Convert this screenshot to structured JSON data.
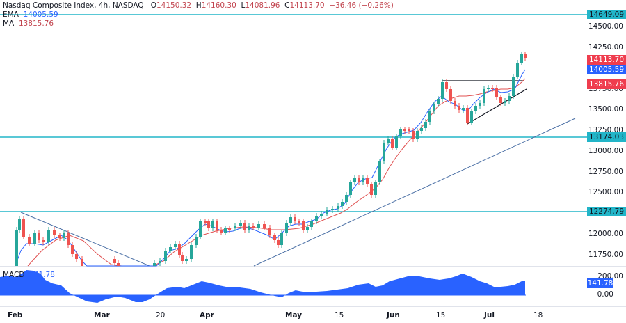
{
  "header": {
    "symbol_title": "Nasdaq Composite Index, 4h, NASDAQ",
    "open_label": "O",
    "open": "14150.32",
    "high_label": "H",
    "high": "14160.30",
    "low_label": "L",
    "low": "14081.96",
    "close_label": "C",
    "close": "14113.70",
    "change": "−36.46 (−0.26%)"
  },
  "indicators": {
    "ema_label": "EMA",
    "ema_value": "14005.59",
    "ma_label": "MA",
    "ma_value": "13815.76",
    "macd_label": "MACD",
    "macd_value": "141.78"
  },
  "price_axis": {
    "ticks": [
      "14500.00",
      "14250.00",
      "13750.00",
      "13500.00",
      "13250.00",
      "13000.00",
      "12750.00",
      "12500.00",
      "12000.00",
      "11750.00"
    ]
  },
  "price_tags": {
    "resistance_top": "14649.09",
    "last_price": "14113.70",
    "ema": "14005.59",
    "ma": "13815.76",
    "support_mid": "13174.03",
    "support_low": "12274.79"
  },
  "macd_axis": {
    "ticks": [
      "200.00",
      "0.00"
    ],
    "current": "141.78"
  },
  "time_axis": {
    "labels": [
      {
        "text": "Feb",
        "bold": true
      },
      {
        "text": "Mar",
        "bold": true
      },
      {
        "text": "20",
        "bold": false
      },
      {
        "text": "Apr",
        "bold": true
      },
      {
        "text": "May",
        "bold": true
      },
      {
        "text": "15",
        "bold": false
      },
      {
        "text": "Jun",
        "bold": true
      },
      {
        "text": "15",
        "bold": false
      },
      {
        "text": "Jul",
        "bold": true
      },
      {
        "text": "18",
        "bold": false
      }
    ]
  },
  "colors": {
    "up": "#26a69a",
    "down": "#ef5350",
    "ema": "#2962ff",
    "ma": "#e05050",
    "hline": "#22b5c8",
    "trendline": "#4a6fa5",
    "triangle": "#131722",
    "macd_fill": "#2962ff"
  },
  "chart_data": {
    "type": "candlestick",
    "title": "Nasdaq Composite Index, 4h, NASDAQ",
    "ohlc_last": {
      "open": 14150.32,
      "high": 14160.3,
      "low": 14081.96,
      "close": 14113.7,
      "change": -36.46,
      "change_pct": -0.26
    },
    "x_labels": [
      "Feb",
      "Mar",
      "20",
      "Apr",
      "May",
      "15",
      "Jun",
      "15",
      "Jul",
      "18"
    ],
    "ylim": [
      11650,
      14700
    ],
    "y_ticks": [
      11750,
      12000,
      12500,
      12750,
      13000,
      13250,
      13500,
      13750,
      14250,
      14500
    ],
    "horizontal_levels": [
      14649.09,
      13174.03,
      12274.79
    ],
    "indicators": {
      "EMA": 14005.59,
      "MA": 13815.76
    },
    "approx_closes": [
      {
        "date": "Feb-start",
        "close": 11900
      },
      {
        "date": "Feb-mid",
        "close": 12050
      },
      {
        "date": "Mar",
        "close": 11800
      },
      {
        "date": "Mar-20",
        "close": 11700
      },
      {
        "date": "Apr",
        "close": 12150
      },
      {
        "date": "Apr-mid",
        "close": 12100
      },
      {
        "date": "May",
        "close": 11950
      },
      {
        "date": "May-15",
        "close": 12250
      },
      {
        "date": "May-end",
        "close": 12700
      },
      {
        "date": "Jun",
        "close": 13250
      },
      {
        "date": "Jun-15",
        "close": 13850
      },
      {
        "date": "Jun-end",
        "close": 13400
      },
      {
        "date": "Jul",
        "close": 13700
      },
      {
        "date": "Jul-last",
        "close": 14113.7
      }
    ],
    "macd": {
      "current": 141.78,
      "y_ticks": [
        0,
        200
      ],
      "approx_series": [
        {
          "date": "Feb",
          "value": 150
        },
        {
          "date": "Feb-mid",
          "value": 200
        },
        {
          "date": "Mar",
          "value": -30
        },
        {
          "date": "Mar-20",
          "value": -80
        },
        {
          "date": "Apr",
          "value": 120
        },
        {
          "date": "May",
          "value": -40
        },
        {
          "date": "May-15",
          "value": 60
        },
        {
          "date": "Jun",
          "value": 180
        },
        {
          "date": "Jun-15",
          "value": 200
        },
        {
          "date": "Jul",
          "value": 70
        },
        {
          "date": "Jul-last",
          "value": 141.78
        }
      ]
    }
  }
}
